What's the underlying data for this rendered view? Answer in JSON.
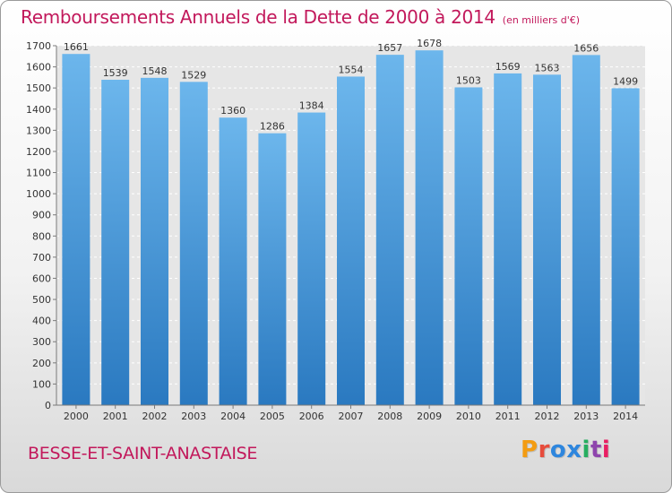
{
  "header": {
    "title": "Remboursements Annuels de la Dette de 2000 à 2014",
    "subtitle": "(en milliers d'€)"
  },
  "footer": {
    "commune": "BESSE-ET-SAINT-ANASTAISE",
    "logo_text": "Proxiti",
    "logo_colors": [
      "#f39c12",
      "#e74c3c",
      "#2e86de",
      "#2e86de",
      "#27ae60",
      "#8e44ad",
      "#e91e63"
    ]
  },
  "colors": {
    "title": "#c2185b",
    "bar_top": "#6cb6ec",
    "bar_bottom": "#2a79c0",
    "plot_bg": "#e6e6e6",
    "grid": "#ffffff"
  },
  "chart_data": {
    "type": "bar",
    "categories": [
      "2000",
      "2001",
      "2002",
      "2003",
      "2004",
      "2005",
      "2006",
      "2007",
      "2008",
      "2009",
      "2010",
      "2011",
      "2012",
      "2013",
      "2014"
    ],
    "values": [
      1661,
      1539,
      1548,
      1529,
      1360,
      1286,
      1384,
      1554,
      1657,
      1678,
      1503,
      1569,
      1563,
      1656,
      1499
    ],
    "title": "Remboursements Annuels de la Dette de 2000 à 2014",
    "subtitle": "(en milliers d'€)",
    "ylim": [
      0,
      1700
    ],
    "yticks": [
      0,
      100,
      200,
      300,
      400,
      500,
      600,
      700,
      800,
      900,
      1000,
      1100,
      1200,
      1300,
      1400,
      1500,
      1600,
      1700
    ],
    "grid": "dashed horizontal",
    "legend": "none"
  }
}
